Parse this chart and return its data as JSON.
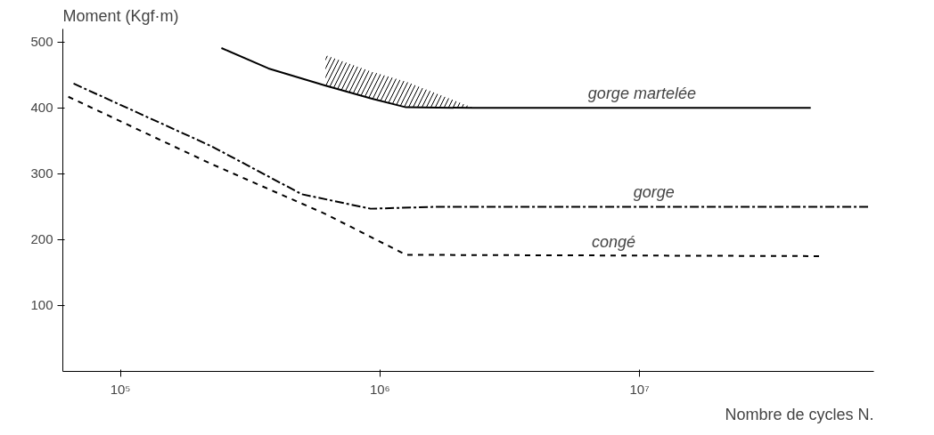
{
  "chart_data": {
    "type": "line",
    "xlabel": "Nombre de cycles N.",
    "ylabel": "Moment (Kgf·m)",
    "log": "x",
    "xlim": [
      60000,
      80000000
    ],
    "ylim": [
      0,
      520
    ],
    "xticks": [
      {
        "value": 100000,
        "label": "10⁵"
      },
      {
        "value": 1000000,
        "label": "10⁶"
      },
      {
        "value": 10000000,
        "label": "10⁷"
      }
    ],
    "yticks": [
      100,
      200,
      300,
      400,
      500
    ],
    "grid": false,
    "legend": false,
    "series": [
      {
        "name": "gorge martelée",
        "color": "#000000",
        "line_style": "solid",
        "x": [
          245000,
          372000,
          617000,
          933000,
          1260000,
          2290000,
          45700000
        ],
        "values": [
          491,
          460,
          434,
          414,
          401,
          400,
          400
        ],
        "lower": [
          null,
          null,
          434,
          414,
          401,
          400,
          null
        ],
        "upper": [
          null,
          null,
          480,
          455,
          440,
          400,
          null
        ]
      },
      {
        "name": "gorge",
        "color": "#000000",
        "line_style": "dashdot",
        "x": [
          66000,
          224000,
          500000,
          920000,
          1700000,
          76000000
        ],
        "values": [
          437,
          342,
          269,
          247,
          250,
          250
        ]
      },
      {
        "name": "congé",
        "color": "#000000",
        "line_style": "dashed",
        "x": [
          63000,
          224000,
          617000,
          1260000,
          50100000
        ],
        "values": [
          417,
          315,
          239,
          177,
          175
        ]
      }
    ]
  }
}
